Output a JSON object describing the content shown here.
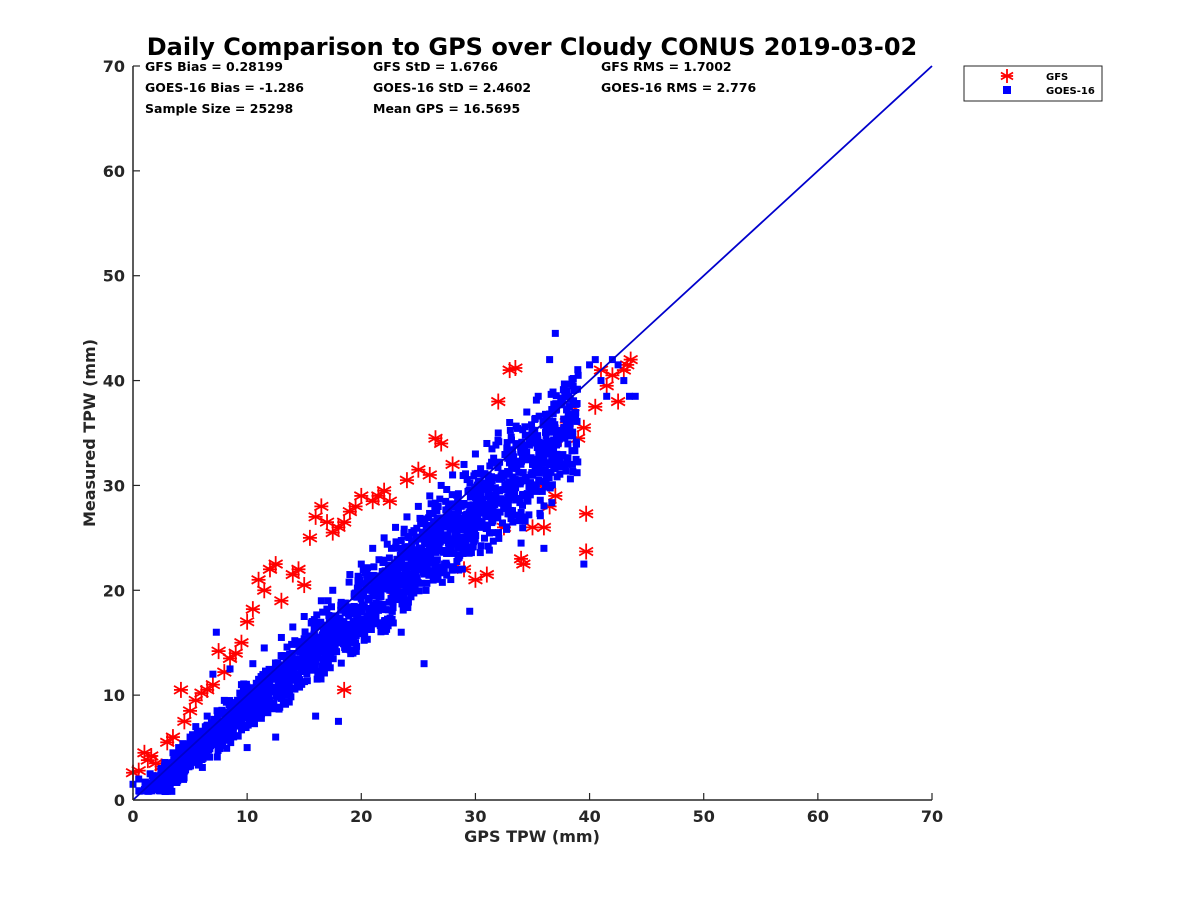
{
  "chart_data": {
    "type": "scatter",
    "title": "Daily Comparison to GPS over Cloudy CONUS 2019-03-02",
    "xlabel": "GPS TPW (mm)",
    "ylabel": "Measured TPW (mm)",
    "xlim": [
      0,
      70
    ],
    "ylim": [
      0,
      70
    ],
    "xticks": [
      "0",
      "10",
      "20",
      "30",
      "40",
      "50",
      "60",
      "70"
    ],
    "yticks": [
      "0",
      "10",
      "20",
      "30",
      "40",
      "50",
      "60",
      "70"
    ],
    "grid": false,
    "legend_position": "outside-top-right",
    "reference_line": {
      "x": [
        0,
        70
      ],
      "y": [
        0,
        70
      ],
      "color": "#0000cc"
    },
    "stats": [
      [
        "GFS Bias = 0.28199",
        "GFS StD = 1.6766",
        "GFS RMS = 1.7002"
      ],
      [
        "GOES-16 Bias = -1.286",
        "GOES-16 StD = 2.4602",
        "GOES-16 RMS = 2.776"
      ],
      [
        "Sample Size = 25298",
        "Mean GPS = 16.5695",
        ""
      ]
    ],
    "series": [
      {
        "name": "GFS",
        "marker": "asterisk",
        "color": "#ff0000",
        "points": [
          [
            0,
            2.6
          ],
          [
            0.5,
            2.8
          ],
          [
            1,
            4.5
          ],
          [
            1.3,
            3.8
          ],
          [
            1.6,
            4.2
          ],
          [
            2,
            3.5
          ],
          [
            2.5,
            3.2
          ],
          [
            3,
            5.5
          ],
          [
            3.5,
            6.0
          ],
          [
            4.2,
            10.5
          ],
          [
            4.5,
            7.5
          ],
          [
            5,
            8.5
          ],
          [
            5.5,
            9.5
          ],
          [
            6,
            10.2
          ],
          [
            6.5,
            10.5
          ],
          [
            7,
            11.0
          ],
          [
            7.5,
            14.2
          ],
          [
            8,
            12.2
          ],
          [
            8.5,
            13.5
          ],
          [
            9,
            14.0
          ],
          [
            9.5,
            15.0
          ],
          [
            10,
            17.0
          ],
          [
            10.5,
            18.2
          ],
          [
            11,
            21.0
          ],
          [
            11.5,
            20.0
          ],
          [
            12,
            22.0
          ],
          [
            12.5,
            22.5
          ],
          [
            13,
            19.0
          ],
          [
            14,
            21.5
          ],
          [
            14.5,
            22.0
          ],
          [
            15,
            20.5
          ],
          [
            15.5,
            25.0
          ],
          [
            16,
            27.0
          ],
          [
            16.5,
            28.0
          ],
          [
            17,
            26.5
          ],
          [
            17.5,
            25.5
          ],
          [
            18,
            26.0
          ],
          [
            18.5,
            26.5
          ],
          [
            18.5,
            10.5
          ],
          [
            19,
            27.5
          ],
          [
            19.5,
            28.0
          ],
          [
            20,
            29.0
          ],
          [
            21,
            28.5
          ],
          [
            21.5,
            29.0
          ],
          [
            22,
            29.5
          ],
          [
            22.5,
            28.5
          ],
          [
            23,
            20.0
          ],
          [
            24,
            30.5
          ],
          [
            25,
            31.5
          ],
          [
            26,
            31.0
          ],
          [
            26.5,
            34.5
          ],
          [
            27,
            34.0
          ],
          [
            28,
            32.0
          ],
          [
            29,
            22.0
          ],
          [
            30,
            21.0
          ],
          [
            31,
            21.5
          ],
          [
            32,
            38.0
          ],
          [
            32.5,
            26.0
          ],
          [
            33,
            41.0
          ],
          [
            33.5,
            41.2
          ],
          [
            34,
            23.0
          ],
          [
            34.2,
            22.5
          ],
          [
            35,
            26.0
          ],
          [
            35.5,
            30.0
          ],
          [
            36,
            26.0
          ],
          [
            36.5,
            28.0
          ],
          [
            37,
            29.0
          ],
          [
            37.5,
            34.5
          ],
          [
            38,
            36.0
          ],
          [
            38.5,
            37.5
          ],
          [
            39,
            34.5
          ],
          [
            39.5,
            35.5
          ],
          [
            39.7,
            27.3
          ],
          [
            39.7,
            23.7
          ],
          [
            40.5,
            37.5
          ],
          [
            41,
            41.0
          ],
          [
            41.5,
            39.5
          ],
          [
            42,
            40.5
          ],
          [
            42.5,
            38.0
          ],
          [
            43,
            41.0
          ],
          [
            43.3,
            41.5
          ],
          [
            43.6,
            42.0
          ]
        ]
      },
      {
        "name": "GOES-16",
        "marker": "square",
        "color": "#0000ff",
        "points": [
          [
            0,
            1.5
          ],
          [
            0.5,
            2.0
          ],
          [
            1,
            1.0
          ],
          [
            1.5,
            2.5
          ],
          [
            2,
            1.2
          ],
          [
            2.5,
            3.0
          ],
          [
            3,
            1.8
          ],
          [
            3.5,
            4.5
          ],
          [
            4,
            5.0
          ],
          [
            4.5,
            3.5
          ],
          [
            5,
            6.0
          ],
          [
            5.5,
            7.0
          ],
          [
            6,
            5.5
          ],
          [
            6.5,
            8.0
          ],
          [
            7,
            12.0
          ],
          [
            7.3,
            16.0
          ],
          [
            7.5,
            6.5
          ],
          [
            8,
            9.5
          ],
          [
            8.5,
            12.5
          ],
          [
            9,
            7.5
          ],
          [
            9.5,
            11.0
          ],
          [
            10,
            5.0
          ],
          [
            10.5,
            13.0
          ],
          [
            11,
            9.0
          ],
          [
            11.5,
            14.5
          ],
          [
            12,
            11.5
          ],
          [
            12.5,
            6.0
          ],
          [
            13,
            15.5
          ],
          [
            13.5,
            10.0
          ],
          [
            14,
            16.5
          ],
          [
            14.5,
            12.0
          ],
          [
            15,
            17.5
          ],
          [
            15.5,
            13.5
          ],
          [
            16,
            8.0
          ],
          [
            16.5,
            19.0
          ],
          [
            17,
            14.0
          ],
          [
            17.5,
            20.0
          ],
          [
            18,
            7.5
          ],
          [
            18.5,
            16.0
          ],
          [
            19,
            21.5
          ],
          [
            19.5,
            15.0
          ],
          [
            20,
            22.5
          ],
          [
            20.5,
            17.5
          ],
          [
            21,
            24.0
          ],
          [
            21.5,
            18.5
          ],
          [
            22,
            25.0
          ],
          [
            22.5,
            20.0
          ],
          [
            23,
            26.0
          ],
          [
            23.5,
            16.0
          ],
          [
            24,
            27.0
          ],
          [
            24.5,
            21.0
          ],
          [
            25,
            28.0
          ],
          [
            25.5,
            13.0
          ],
          [
            26,
            29.0
          ],
          [
            26.5,
            22.5
          ],
          [
            27,
            30.0
          ],
          [
            27.5,
            25.0
          ],
          [
            28,
            31.0
          ],
          [
            28.5,
            24.0
          ],
          [
            29,
            32.0
          ],
          [
            29.5,
            18.0
          ],
          [
            30,
            33.0
          ],
          [
            30.5,
            26.0
          ],
          [
            31,
            34.0
          ],
          [
            31.5,
            25.5
          ],
          [
            32,
            35.0
          ],
          [
            32.5,
            28.0
          ],
          [
            33,
            36.0
          ],
          [
            33.5,
            30.5
          ],
          [
            34,
            24.5
          ],
          [
            34.5,
            37.0
          ],
          [
            35,
            32.0
          ],
          [
            35.5,
            38.5
          ],
          [
            36,
            24.0
          ],
          [
            36.5,
            42.0
          ],
          [
            37,
            44.5
          ],
          [
            37.5,
            35.0
          ],
          [
            38,
            39.0
          ],
          [
            38.5,
            32.0
          ],
          [
            39,
            40.5
          ],
          [
            39.5,
            22.5
          ],
          [
            40,
            41.5
          ],
          [
            40.5,
            42.0
          ],
          [
            41,
            40.0
          ],
          [
            41.5,
            38.5
          ],
          [
            42,
            42.0
          ],
          [
            42.5,
            41.5
          ],
          [
            43,
            40.0
          ],
          [
            43.5,
            38.5
          ],
          [
            44,
            38.5
          ]
        ]
      }
    ]
  }
}
